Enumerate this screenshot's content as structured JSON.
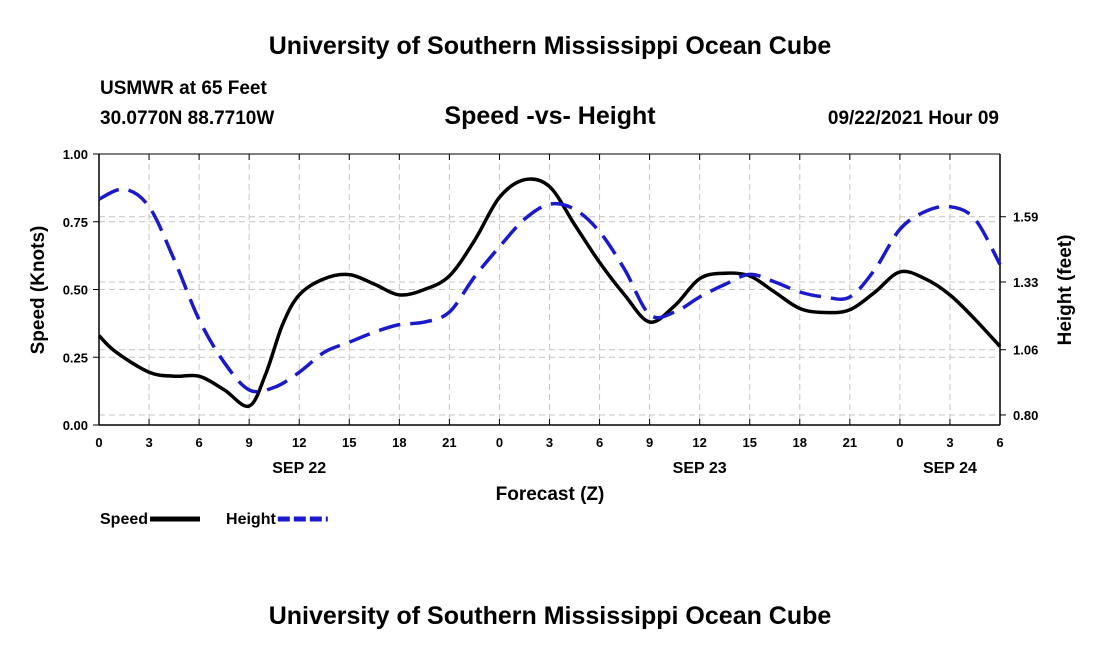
{
  "page": {
    "top_title": "University of Southern Mississippi Ocean Cube",
    "bottom_title": "University of Southern Mississippi Ocean Cube",
    "station": "USMWR at 65 Feet",
    "coords": "30.0770N  88.7710W",
    "datetime": "09/22/2021 Hour 09"
  },
  "chart_data": {
    "type": "line",
    "title": "Speed -vs- Height",
    "xlabel": "Forecast (Z)",
    "ylabel": "Speed (Knots)",
    "y2label": "Height (feet)",
    "grid": true,
    "legend_position": "bottom-left",
    "x_ticks": [
      0,
      3,
      6,
      9,
      12,
      15,
      18,
      21,
      24,
      27,
      30,
      33,
      36,
      39,
      42,
      45,
      48,
      51,
      54
    ],
    "x_tick_labels": [
      "0",
      "3",
      "6",
      "9",
      "12",
      "15",
      "18",
      "21",
      "0",
      "3",
      "6",
      "9",
      "12",
      "15",
      "18",
      "21",
      "0",
      "3",
      "6"
    ],
    "day_labels": [
      {
        "x": 12,
        "label": "SEP 22"
      },
      {
        "x": 36,
        "label": "SEP 23"
      },
      {
        "x": 51,
        "label": "SEP 24"
      }
    ],
    "ylim": [
      0,
      1.0
    ],
    "y_ticks": [
      0,
      0.25,
      0.5,
      0.75,
      1.0
    ],
    "y_tick_labels": [
      "0.00",
      "0.25",
      "0.50",
      "0.75",
      "1.00"
    ],
    "y2lim": [
      0.76,
      1.84
    ],
    "y2_ticks": [
      0.8,
      1.06,
      1.33,
      1.59
    ],
    "y2_tick_labels": [
      "0.80",
      "1.06",
      "1.33",
      "1.59"
    ],
    "series": [
      {
        "name": "Speed",
        "axis": "left",
        "color": "#000000",
        "dash": "solid",
        "x": [
          0,
          1,
          3,
          4.5,
          6,
          7.5,
          9,
          10,
          11,
          12,
          13.5,
          15,
          16.5,
          18,
          19.5,
          21,
          22.5,
          24,
          25.5,
          27,
          28.5,
          30,
          31.5,
          33,
          34.5,
          36,
          37.5,
          39,
          40.5,
          42,
          43.5,
          45,
          46.5,
          48,
          49.5,
          51,
          52.5,
          54
        ],
        "y": [
          0.33,
          0.27,
          0.195,
          0.18,
          0.18,
          0.13,
          0.07,
          0.19,
          0.37,
          0.48,
          0.54,
          0.555,
          0.52,
          0.48,
          0.5,
          0.55,
          0.68,
          0.84,
          0.905,
          0.88,
          0.74,
          0.6,
          0.48,
          0.38,
          0.44,
          0.54,
          0.56,
          0.55,
          0.49,
          0.43,
          0.415,
          0.425,
          0.49,
          0.565,
          0.54,
          0.48,
          0.39,
          0.29
        ]
      },
      {
        "name": "Height",
        "axis": "right",
        "color": "#1a1acc",
        "dash": "dashed",
        "x": [
          0,
          1.5,
          3,
          4.5,
          6,
          7.5,
          9,
          10.5,
          12,
          13.5,
          15,
          16.5,
          18,
          19.5,
          21,
          22.5,
          24,
          25.5,
          27,
          28.5,
          30,
          31.5,
          33,
          34.5,
          36,
          37.5,
          39,
          40.5,
          42,
          43.5,
          45,
          46.5,
          48,
          49.5,
          51,
          52.5,
          54
        ],
        "y": [
          1.66,
          1.7,
          1.63,
          1.42,
          1.18,
          1.01,
          0.9,
          0.91,
          0.97,
          1.05,
          1.09,
          1.13,
          1.16,
          1.17,
          1.21,
          1.35,
          1.47,
          1.58,
          1.64,
          1.62,
          1.53,
          1.38,
          1.2,
          1.21,
          1.27,
          1.32,
          1.36,
          1.33,
          1.29,
          1.27,
          1.27,
          1.38,
          1.54,
          1.61,
          1.63,
          1.58,
          1.4
        ]
      }
    ]
  }
}
